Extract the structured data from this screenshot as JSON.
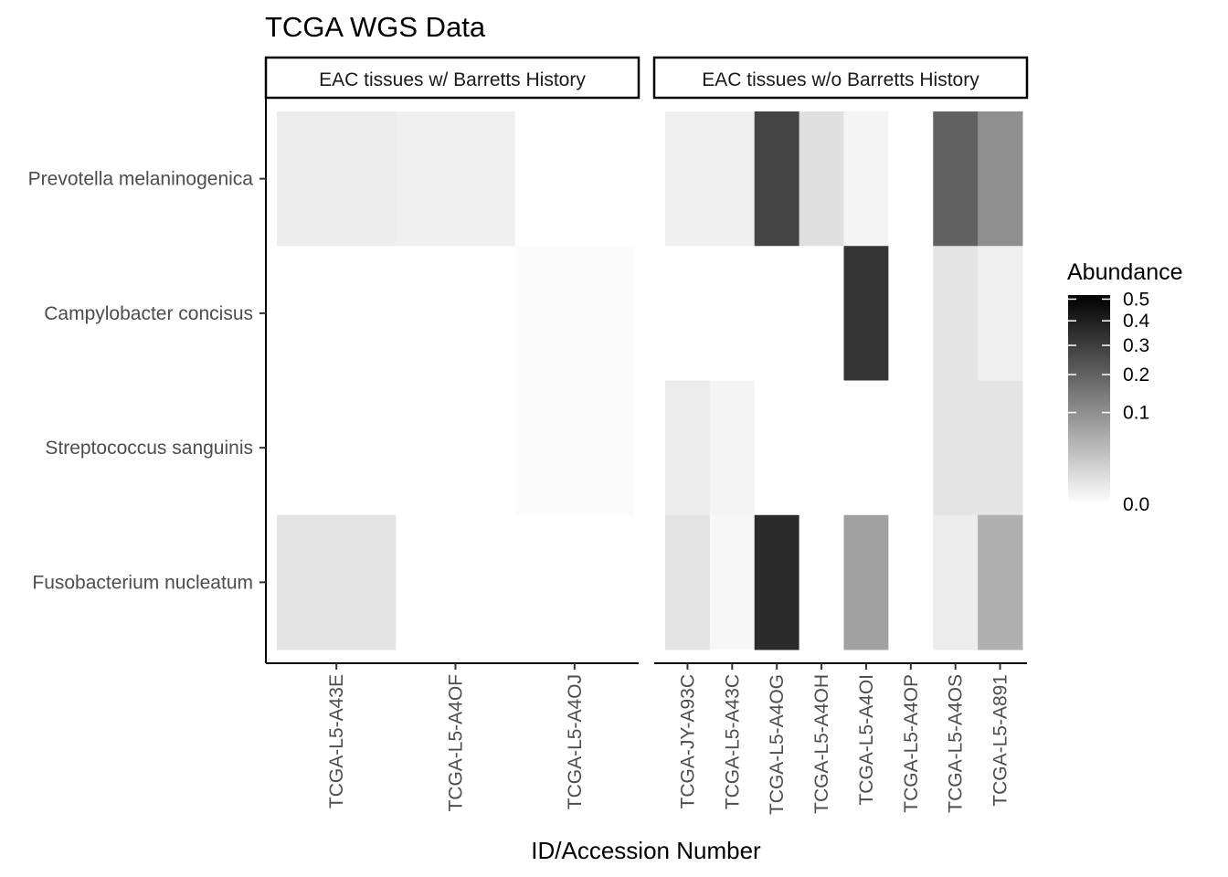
{
  "chart_data": {
    "type": "heatmap",
    "title": "TCGA WGS Data",
    "xlabel": "ID/Accession Number",
    "ylabel": "",
    "legend": {
      "title": "Abundance",
      "ticks": [
        "0.5",
        "0.4",
        "0.3",
        "0.2",
        "0.1",
        "0.0"
      ],
      "tick_values": [
        0.5,
        0.4,
        0.3,
        0.2,
        0.1,
        0.0
      ],
      "scale": "sqrt",
      "limits": [
        0,
        0.52
      ],
      "low_color": "#ffffff",
      "high_color": "#000000",
      "placement": "right"
    },
    "rows": [
      "Prevotella melaninogenica",
      "Campylobacter concisus",
      "Streptococcus sanguinis",
      "Fusobacterium nucleatum"
    ],
    "panels": [
      {
        "label": "EAC tissues w/ Barretts History",
        "columns": [
          "TCGA-L5-A43E",
          "TCGA-L5-A4OF",
          "TCGA-L5-A4OJ"
        ],
        "values": [
          [
            0.003,
            0.002,
            0.0
          ],
          [
            0.0,
            0.0,
            0.0001
          ],
          [
            0.0,
            0.0,
            0.0001
          ],
          [
            0.006,
            0.0,
            0.0
          ]
        ]
      },
      {
        "label": "EAC tissues w/o Barretts History",
        "columns": [
          "TCGA-JY-A93C",
          "TCGA-L5-A43C",
          "TCGA-L5-A4OG",
          "TCGA-L5-A4OH",
          "TCGA-L5-A4OI",
          "TCGA-L5-A4OP",
          "TCGA-L5-A4OS",
          "TCGA-L5-A891"
        ],
        "values": [
          [
            0.002,
            0.002,
            0.28,
            0.008,
            0.001,
            0.0,
            0.2,
            0.1
          ],
          [
            0.0,
            0.0,
            0.0,
            0.0,
            0.33,
            0.0,
            0.006,
            0.002
          ],
          [
            0.003,
            0.001,
            0.0,
            0.0,
            0.0,
            0.0,
            0.006,
            0.006
          ],
          [
            0.006,
            0.0005,
            0.36,
            0.0,
            0.07,
            0.0,
            0.003,
            0.05
          ]
        ]
      }
    ]
  }
}
